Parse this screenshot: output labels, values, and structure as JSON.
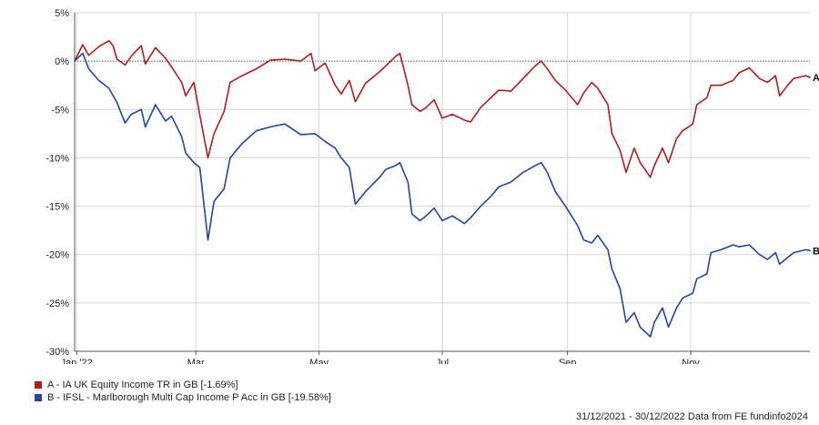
{
  "chart_data": {
    "type": "line",
    "title": "",
    "xlabel": "",
    "ylabel": "",
    "x_range": [
      "2021-12-31",
      "2022-12-30"
    ],
    "ylim": [
      -30,
      5
    ],
    "y_ticks": [
      5,
      0,
      -5,
      -10,
      -15,
      -20,
      -25,
      -30
    ],
    "y_tick_labels": [
      "5%",
      "0%",
      "-5%",
      "-10%",
      "-15%",
      "-20%",
      "-25%",
      "-30%"
    ],
    "x_ticks": [
      "2022-01-01",
      "2022-03-01",
      "2022-05-01",
      "2022-07-01",
      "2022-09-01",
      "2022-11-01"
    ],
    "x_tick_labels": [
      "Jan '22",
      "Mar",
      "May",
      "Jul",
      "Sep",
      "Nov"
    ],
    "grid": true,
    "zero_line": "dotted",
    "legend_placement": "bottom-left",
    "series": [
      {
        "name": "A - IA UK Equity Income TR in GB [-1.69%]",
        "end_label": "A",
        "color": "#b01c1c",
        "points": [
          [
            "2021-12-31",
            0
          ],
          [
            "2022-01-04",
            1.7
          ],
          [
            "2022-01-07",
            0.6
          ],
          [
            "2022-01-12",
            1.5
          ],
          [
            "2022-01-17",
            2.1
          ],
          [
            "2022-01-19",
            1.6
          ],
          [
            "2022-01-21",
            0.2
          ],
          [
            "2022-01-25",
            -0.4
          ],
          [
            "2022-01-28",
            0.5
          ],
          [
            "2022-02-02",
            1.6
          ],
          [
            "2022-02-04",
            -0.3
          ],
          [
            "2022-02-09",
            1.4
          ],
          [
            "2022-02-14",
            0.3
          ],
          [
            "2022-02-17",
            -0.6
          ],
          [
            "2022-02-22",
            -2.2
          ],
          [
            "2022-02-24",
            -3.6
          ],
          [
            "2022-02-28",
            -2.2
          ],
          [
            "2022-03-03",
            -5.6
          ],
          [
            "2022-03-07",
            -10.0
          ],
          [
            "2022-03-10",
            -7.5
          ],
          [
            "2022-03-15",
            -5.2
          ],
          [
            "2022-03-18",
            -2.2
          ],
          [
            "2022-03-24",
            -1.5
          ],
          [
            "2022-03-31",
            -0.8
          ],
          [
            "2022-04-07",
            0.1
          ],
          [
            "2022-04-14",
            0.2
          ],
          [
            "2022-04-22",
            0.0
          ],
          [
            "2022-04-27",
            0.8
          ],
          [
            "2022-04-29",
            -1.0
          ],
          [
            "2022-05-04",
            -0.2
          ],
          [
            "2022-05-09",
            -2.5
          ],
          [
            "2022-05-12",
            -3.4
          ],
          [
            "2022-05-16",
            -2.0
          ],
          [
            "2022-05-19",
            -4.2
          ],
          [
            "2022-05-24",
            -2.3
          ],
          [
            "2022-05-31",
            -1.1
          ],
          [
            "2022-06-03",
            -0.5
          ],
          [
            "2022-06-08",
            0.5
          ],
          [
            "2022-06-10",
            0.8
          ],
          [
            "2022-06-14",
            -2.5
          ],
          [
            "2022-06-16",
            -4.5
          ],
          [
            "2022-06-20",
            -5.2
          ],
          [
            "2022-06-23",
            -4.8
          ],
          [
            "2022-06-27",
            -4.0
          ],
          [
            "2022-07-01",
            -5.9
          ],
          [
            "2022-07-06",
            -5.5
          ],
          [
            "2022-07-12",
            -6.1
          ],
          [
            "2022-07-15",
            -6.3
          ],
          [
            "2022-07-20",
            -4.8
          ],
          [
            "2022-07-25",
            -3.8
          ],
          [
            "2022-07-29",
            -3.0
          ],
          [
            "2022-08-04",
            -3.1
          ],
          [
            "2022-08-10",
            -1.8
          ],
          [
            "2022-08-16",
            -0.5
          ],
          [
            "2022-08-19",
            0.0
          ],
          [
            "2022-08-22",
            -0.8
          ],
          [
            "2022-08-26",
            -2.0
          ],
          [
            "2022-08-31",
            -3.0
          ],
          [
            "2022-09-06",
            -4.5
          ],
          [
            "2022-09-09",
            -3.3
          ],
          [
            "2022-09-13",
            -2.2
          ],
          [
            "2022-09-16",
            -2.8
          ],
          [
            "2022-09-21",
            -4.5
          ],
          [
            "2022-09-23",
            -7.5
          ],
          [
            "2022-09-27",
            -9.2
          ],
          [
            "2022-09-30",
            -11.5
          ],
          [
            "2022-10-04",
            -9.0
          ],
          [
            "2022-10-07",
            -10.5
          ],
          [
            "2022-10-12",
            -12.0
          ],
          [
            "2022-10-14",
            -10.8
          ],
          [
            "2022-10-18",
            -9.0
          ],
          [
            "2022-10-21",
            -10.5
          ],
          [
            "2022-10-25",
            -8.0
          ],
          [
            "2022-10-28",
            -7.2
          ],
          [
            "2022-11-02",
            -6.5
          ],
          [
            "2022-11-04",
            -4.5
          ],
          [
            "2022-11-09",
            -3.8
          ],
          [
            "2022-11-11",
            -2.5
          ],
          [
            "2022-11-16",
            -2.5
          ],
          [
            "2022-11-22",
            -2.0
          ],
          [
            "2022-11-25",
            -1.2
          ],
          [
            "2022-11-30",
            -0.7
          ],
          [
            "2022-12-05",
            -1.8
          ],
          [
            "2022-12-09",
            -2.2
          ],
          [
            "2022-12-13",
            -1.5
          ],
          [
            "2022-12-15",
            -3.6
          ],
          [
            "2022-12-19",
            -2.5
          ],
          [
            "2022-12-22",
            -1.8
          ],
          [
            "2022-12-28",
            -1.5
          ],
          [
            "2022-12-30",
            -1.69
          ]
        ]
      },
      {
        "name": "B - IFSL - Marlborough Multi Cap Income P Acc in GB [-19.58%]",
        "end_label": "B",
        "color": "#1f46a0",
        "points": [
          [
            "2021-12-31",
            0
          ],
          [
            "2022-01-04",
            0.8
          ],
          [
            "2022-01-07",
            -0.8
          ],
          [
            "2022-01-12",
            -2.0
          ],
          [
            "2022-01-17",
            -2.8
          ],
          [
            "2022-01-21",
            -4.3
          ],
          [
            "2022-01-25",
            -6.4
          ],
          [
            "2022-01-28",
            -5.5
          ],
          [
            "2022-02-02",
            -5.0
          ],
          [
            "2022-02-04",
            -6.8
          ],
          [
            "2022-02-09",
            -4.5
          ],
          [
            "2022-02-14",
            -6.2
          ],
          [
            "2022-02-17",
            -5.7
          ],
          [
            "2022-02-22",
            -7.8
          ],
          [
            "2022-02-24",
            -9.5
          ],
          [
            "2022-02-28",
            -10.5
          ],
          [
            "2022-03-03",
            -11.0
          ],
          [
            "2022-03-07",
            -18.5
          ],
          [
            "2022-03-10",
            -14.5
          ],
          [
            "2022-03-15",
            -13.2
          ],
          [
            "2022-03-18",
            -10.0
          ],
          [
            "2022-03-24",
            -8.5
          ],
          [
            "2022-03-31",
            -7.2
          ],
          [
            "2022-04-07",
            -6.8
          ],
          [
            "2022-04-14",
            -6.5
          ],
          [
            "2022-04-22",
            -7.6
          ],
          [
            "2022-04-29",
            -7.5
          ],
          [
            "2022-05-04",
            -8.3
          ],
          [
            "2022-05-09",
            -9.0
          ],
          [
            "2022-05-12",
            -10.0
          ],
          [
            "2022-05-16",
            -11.0
          ],
          [
            "2022-05-19",
            -14.8
          ],
          [
            "2022-05-24",
            -13.5
          ],
          [
            "2022-05-31",
            -12.0
          ],
          [
            "2022-06-03",
            -11.2
          ],
          [
            "2022-06-08",
            -10.8
          ],
          [
            "2022-06-10",
            -10.5
          ],
          [
            "2022-06-14",
            -12.5
          ],
          [
            "2022-06-16",
            -15.8
          ],
          [
            "2022-06-20",
            -16.5
          ],
          [
            "2022-06-23",
            -16.0
          ],
          [
            "2022-06-27",
            -15.2
          ],
          [
            "2022-07-01",
            -16.5
          ],
          [
            "2022-07-06",
            -16.0
          ],
          [
            "2022-07-12",
            -16.8
          ],
          [
            "2022-07-15",
            -16.2
          ],
          [
            "2022-07-20",
            -15.0
          ],
          [
            "2022-07-25",
            -14.0
          ],
          [
            "2022-07-29",
            -13.0
          ],
          [
            "2022-08-04",
            -12.5
          ],
          [
            "2022-08-10",
            -11.5
          ],
          [
            "2022-08-16",
            -10.8
          ],
          [
            "2022-08-19",
            -10.5
          ],
          [
            "2022-08-22",
            -11.5
          ],
          [
            "2022-08-26",
            -13.5
          ],
          [
            "2022-08-31",
            -15.0
          ],
          [
            "2022-09-06",
            -17.0
          ],
          [
            "2022-09-09",
            -18.5
          ],
          [
            "2022-09-13",
            -18.8
          ],
          [
            "2022-09-16",
            -18.0
          ],
          [
            "2022-09-21",
            -19.5
          ],
          [
            "2022-09-23",
            -21.5
          ],
          [
            "2022-09-27",
            -23.5
          ],
          [
            "2022-09-30",
            -27.0
          ],
          [
            "2022-10-04",
            -26.0
          ],
          [
            "2022-10-07",
            -27.5
          ],
          [
            "2022-10-12",
            -28.5
          ],
          [
            "2022-10-14",
            -27.0
          ],
          [
            "2022-10-18",
            -25.5
          ],
          [
            "2022-10-21",
            -27.5
          ],
          [
            "2022-10-25",
            -25.5
          ],
          [
            "2022-10-28",
            -24.5
          ],
          [
            "2022-11-02",
            -24.0
          ],
          [
            "2022-11-04",
            -22.5
          ],
          [
            "2022-11-09",
            -22.0
          ],
          [
            "2022-11-11",
            -19.8
          ],
          [
            "2022-11-16",
            -19.5
          ],
          [
            "2022-11-22",
            -19.0
          ],
          [
            "2022-11-25",
            -19.2
          ],
          [
            "2022-11-30",
            -19.0
          ],
          [
            "2022-12-05",
            -20.0
          ],
          [
            "2022-12-09",
            -20.5
          ],
          [
            "2022-12-13",
            -19.8
          ],
          [
            "2022-12-15",
            -21.0
          ],
          [
            "2022-12-19",
            -20.3
          ],
          [
            "2022-12-22",
            -19.8
          ],
          [
            "2022-12-28",
            -19.5
          ],
          [
            "2022-12-30",
            -19.58
          ]
        ]
      }
    ],
    "source_note": "31/12/2021 - 30/12/2022 Data from FE fundinfo2024"
  }
}
